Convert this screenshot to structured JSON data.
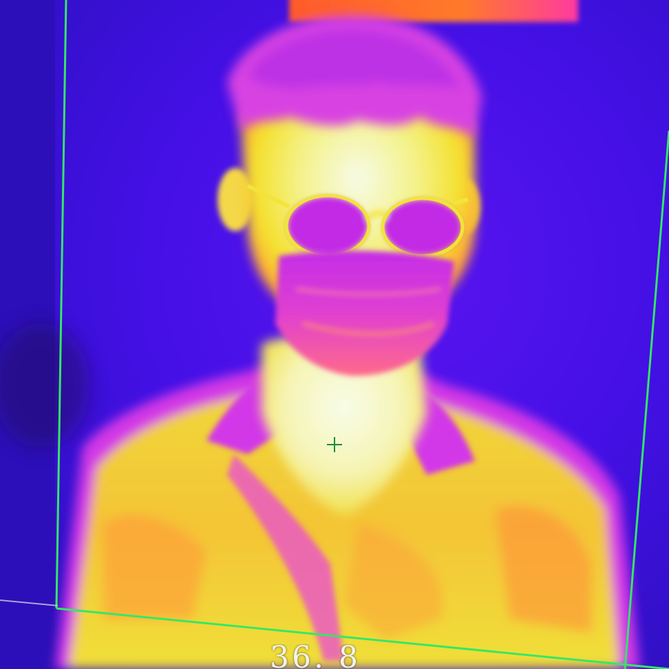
{
  "thermal_view": {
    "palette": {
      "background": "#4410e6",
      "cold": "#5a14f0",
      "cool": "#d02cf0",
      "warm": "#ff7a2a",
      "hot": "#f4ec2c",
      "hottest": "#f4fbe6"
    },
    "detection_box_color": "#33e866",
    "crosshair_color": "#1a8a3a",
    "temperature_readout": "36. 8"
  },
  "icons": {
    "crosshair": "crosshair-icon"
  }
}
